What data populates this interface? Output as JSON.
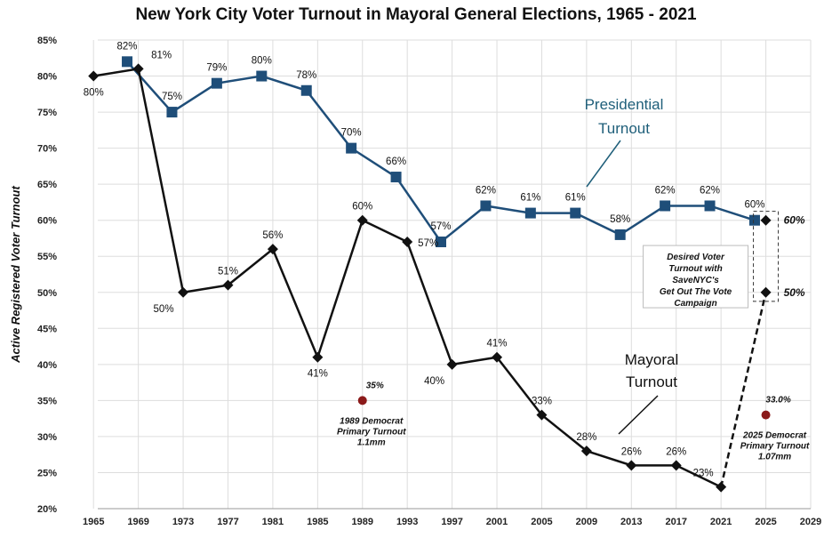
{
  "chart_data": {
    "type": "line",
    "title": "New York City Voter Turnout in Mayoral General Elections, 1965 - 2021",
    "ylabel": "Active Registered Voter Turnout",
    "xlabel": "",
    "ylim": [
      20,
      85
    ],
    "xlim": [
      1963,
      2029
    ],
    "yticks": [
      "20%",
      "25%",
      "30%",
      "35%",
      "40%",
      "45%",
      "50%",
      "55%",
      "60%",
      "65%",
      "70%",
      "75%",
      "80%",
      "85%"
    ],
    "xticks": [
      "1965",
      "1969",
      "1973",
      "1977",
      "1981",
      "1985",
      "1989",
      "1993",
      "1997",
      "2001",
      "2005",
      "2009",
      "2013",
      "2017",
      "2021",
      "2025",
      "2029"
    ],
    "grid": true,
    "colors": {
      "presidential": "#1f4e79",
      "mayoral": "#111111",
      "primary": "#8b1a1a",
      "presidential_label": "#1f5f7a"
    },
    "series": [
      {
        "name": "Presidential Turnout",
        "label": "Presidential Turnout",
        "x": [
          1968,
          1972,
          1976,
          1980,
          1984,
          1988,
          1992,
          1996,
          2000,
          2004,
          2008,
          2012,
          2016,
          2020,
          2024
        ],
        "values": [
          82,
          75,
          79,
          80,
          78,
          70,
          66,
          57,
          62,
          61,
          61,
          58,
          62,
          62,
          60
        ],
        "labels": [
          "82%",
          "75%",
          "79%",
          "80%",
          "78%",
          "70%",
          "66%",
          "57%",
          "62%",
          "61%",
          "61%",
          "58%",
          "62%",
          "62%",
          "60%"
        ]
      },
      {
        "name": "Mayoral Turnout",
        "label": "Mayoral Turnout",
        "x": [
          1965,
          1969,
          1973,
          1977,
          1981,
          1985,
          1989,
          1993,
          1997,
          2001,
          2005,
          2009,
          2013,
          2017,
          2021
        ],
        "values": [
          80,
          81,
          50,
          51,
          56,
          41,
          60,
          57,
          40,
          41,
          33,
          28,
          26,
          26,
          23
        ],
        "labels": [
          "80%",
          "81%",
          "50%",
          "51%",
          "56%",
          "41%",
          "60%",
          "57%",
          "40%",
          "41%",
          "33%",
          "28%",
          "26%",
          "26%",
          "23%"
        ]
      },
      {
        "name": "Desired Voter Turnout",
        "x": [
          2025,
          2025
        ],
        "values": [
          50,
          60
        ],
        "labels": [
          "50%",
          "60%"
        ]
      }
    ],
    "annotations": {
      "desired_box": "Desired Voter Turnout with SaveNYC's Get Out The Vote Campaign",
      "primary_1989": {
        "x": 1989,
        "value": 35,
        "value_label": "35%",
        "text": [
          "1989 Democrat",
          "Primary Turnout",
          "1.1mm"
        ]
      },
      "primary_2025": {
        "x": 2025,
        "value": 33.0,
        "value_label": "33.0%",
        "text": [
          "2025 Democrat",
          "Primary Turnout",
          "1.07mm"
        ]
      }
    }
  }
}
